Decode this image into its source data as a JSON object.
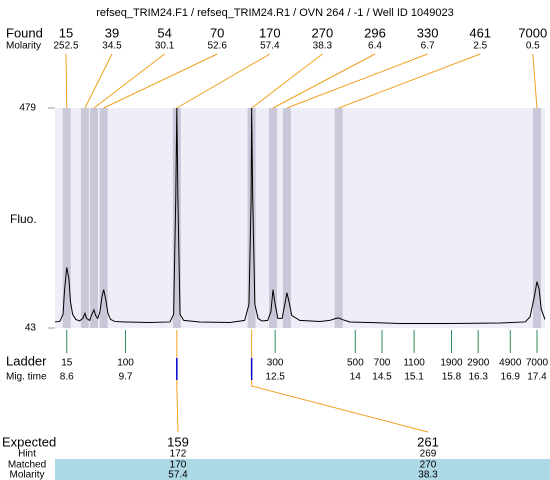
{
  "chart_data": {
    "type": "line",
    "title": "refseq_TRIM24.F1 / refseq_TRIM24.R1 / OVN 264 / -1 / Well ID 1049023",
    "ylabel": "Fluo.",
    "ylim": [
      43,
      479
    ],
    "yticks": [
      43,
      479
    ],
    "xlim": [
      8.38,
      17.55
    ],
    "color": "#000000",
    "x": [
      8.38,
      8.47,
      8.53,
      8.56,
      8.6,
      8.64,
      8.67,
      8.71,
      8.77,
      8.84,
      8.9,
      8.94,
      8.97,
      9.03,
      9.07,
      9.11,
      9.14,
      9.18,
      9.22,
      9.26,
      9.29,
      9.33,
      9.37,
      9.42,
      9.5,
      9.69,
      10.15,
      10.53,
      10.6,
      10.64,
      10.66,
      10.68,
      10.72,
      10.79,
      11.09,
      11.65,
      11.93,
      12.01,
      12.05,
      12.06,
      12.08,
      12.12,
      12.18,
      12.25,
      12.36,
      12.42,
      12.46,
      12.5,
      12.55,
      12.63,
      12.69,
      12.72,
      12.76,
      12.81,
      12.96,
      13.34,
      13.52,
      13.64,
      13.69,
      13.75,
      13.9,
      14.84,
      15.77,
      16.71,
      17.18,
      17.27,
      17.35,
      17.4,
      17.44,
      17.48,
      17.55
    ],
    "values": [
      55,
      56,
      70,
      120,
      163,
      140,
      95,
      70,
      60,
      57,
      62,
      72,
      62,
      58,
      70,
      79,
      68,
      62,
      75,
      105,
      119,
      100,
      72,
      60,
      56,
      55,
      54,
      55,
      70,
      300,
      479,
      300,
      70,
      58,
      55,
      54,
      58,
      90,
      300,
      479,
      300,
      90,
      62,
      57,
      58,
      75,
      119,
      90,
      62,
      62,
      95,
      113,
      95,
      68,
      58,
      56,
      58,
      62,
      63,
      60,
      55,
      52,
      52,
      53,
      55,
      65,
      105,
      135,
      120,
      80,
      60
    ],
    "found": {
      "label": "Found",
      "molarity_label": "Molarity",
      "sizes": [
        15,
        39,
        54,
        70,
        170,
        270,
        296,
        330,
        461,
        7000
      ],
      "molarities": [
        252.5,
        34.5,
        30.1,
        52.6,
        57.4,
        38.3,
        6.4,
        6.7,
        2.5,
        0.5
      ],
      "times": [
        8.6,
        8.94,
        9.11,
        9.29,
        10.66,
        12.06,
        12.46,
        12.72,
        13.69,
        17.4
      ]
    },
    "ladder": {
      "label": "Ladder",
      "time_label": "Mig. time",
      "sizes": [
        15,
        100,
        300,
        500,
        700,
        1100,
        1900,
        2900,
        4900,
        7000
      ],
      "times": [
        8.6,
        9.7,
        12.5,
        14,
        14.5,
        15.1,
        15.8,
        16.3,
        16.9,
        17.4
      ]
    },
    "expected": {
      "label": "Expected",
      "sizes": [
        159,
        261
      ],
      "hint_label": "Hint",
      "hints": [
        172,
        269
      ],
      "matched_label": "Matched",
      "matched": [
        170,
        270
      ],
      "molarity_label": "Molarity",
      "molarities": [
        57.4,
        38.3
      ],
      "found_index": [
        4,
        5
      ]
    }
  }
}
